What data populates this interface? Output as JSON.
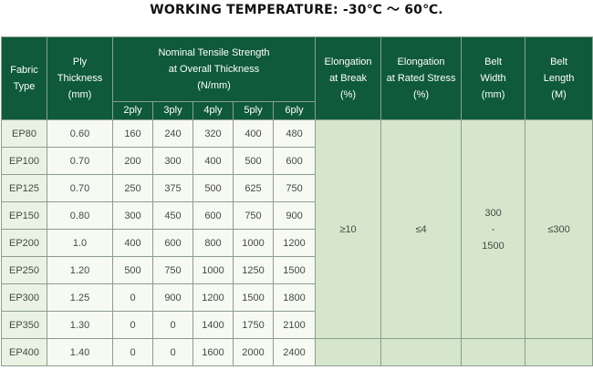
{
  "title": "WORKING TEMPERATURE: -30℃ ～ 60℃.",
  "header": {
    "fabric_type": [
      "Fabric",
      "Type"
    ],
    "ply_thickness": [
      "Ply",
      "Thickness",
      "(mm)"
    ],
    "nominal_tensile": [
      "Nominal Tensile Strength",
      "at Overall Thickness",
      "(N/mm)"
    ],
    "ply_columns": [
      "2ply",
      "3ply",
      "4ply",
      "5ply",
      "6ply"
    ],
    "elongation_break": [
      "Elongation",
      "at Break",
      "(%)"
    ],
    "elongation_rated": [
      "Elongation",
      "at Rated Stress",
      "(%)"
    ],
    "belt_width": [
      "Belt",
      "Width",
      "(mm)"
    ],
    "belt_length": [
      "Belt",
      "Length",
      "(M)"
    ]
  },
  "rows": [
    {
      "fabric": "EP80",
      "thickness": "0.60",
      "plies": [
        "160",
        "240",
        "320",
        "400",
        "480"
      ]
    },
    {
      "fabric": "EP100",
      "thickness": "0.70",
      "plies": [
        "200",
        "300",
        "400",
        "500",
        "600"
      ]
    },
    {
      "fabric": "EP125",
      "thickness": "0.70",
      "plies": [
        "250",
        "375",
        "500",
        "625",
        "750"
      ]
    },
    {
      "fabric": "EP150",
      "thickness": "0.80",
      "plies": [
        "300",
        "450",
        "600",
        "750",
        "900"
      ]
    },
    {
      "fabric": "EP200",
      "thickness": "1.0",
      "plies": [
        "400",
        "600",
        "800",
        "1000",
        "1200"
      ]
    },
    {
      "fabric": "EP250",
      "thickness": "1.20",
      "plies": [
        "500",
        "750",
        "1000",
        "1250",
        "1500"
      ]
    },
    {
      "fabric": "EP300",
      "thickness": "1.25",
      "plies": [
        "0",
        "900",
        "1200",
        "1500",
        "1800"
      ]
    },
    {
      "fabric": "EP350",
      "thickness": "1.30",
      "plies": [
        "0",
        "0",
        "1400",
        "1750",
        "2100"
      ]
    },
    {
      "fabric": "EP400",
      "thickness": "1.40",
      "plies": [
        "0",
        "0",
        "1600",
        "2000",
        "2400"
      ]
    }
  ],
  "shared": {
    "elongation_break": "≥10",
    "elongation_rated": "≤4",
    "belt_width": [
      "300",
      "-",
      "1500"
    ],
    "belt_length": "≤300"
  },
  "colors": {
    "header_bg": "#0e5a3b",
    "header_text": "#ffffff",
    "first_col_bg": "#eaf3e3",
    "merged_bg": "#d6e6cc"
  }
}
